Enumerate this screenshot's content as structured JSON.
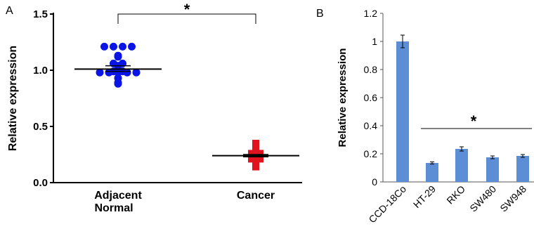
{
  "chart_data": [
    {
      "type": "scatter",
      "panel_label": "A",
      "ylabel": "Relative expression",
      "ylim": [
        0.0,
        1.5
      ],
      "yticks": [
        "0.0",
        "0.5",
        "1.0",
        "1.5"
      ],
      "categories": [
        {
          "lines": [
            "Adjacent",
            "Normal"
          ]
        },
        {
          "lines": [
            "Cancer"
          ]
        }
      ],
      "series": [
        {
          "color": "#0a14e6",
          "marker": "circle",
          "values": [
            1.21,
            1.21,
            1.21,
            1.21,
            1.13,
            1.12,
            1.06,
            1.06,
            1.04,
            0.99,
            0.98,
            0.98,
            0.98,
            0.98,
            0.98,
            0.99,
            0.93,
            0.89,
            0.88
          ],
          "mean": 1.01,
          "sem": [
            0.99,
            1.04
          ]
        },
        {
          "color": "#e0141e",
          "marker": "square",
          "values": [
            0.35,
            0.33,
            0.31,
            0.29,
            0.27,
            0.26,
            0.26,
            0.24,
            0.24,
            0.23,
            0.22,
            0.21,
            0.21,
            0.2,
            0.19,
            0.17,
            0.15,
            0.14
          ],
          "mean": 0.24,
          "sem": [
            0.23,
            0.25
          ]
        }
      ],
      "significance": {
        "label": "*",
        "from": 0,
        "to": 1
      }
    },
    {
      "type": "bar",
      "panel_label": "B",
      "ylabel": "Relative expression",
      "ylim": [
        0,
        1.2
      ],
      "yticks": [
        "0",
        "0.2",
        "0.4",
        "0.6",
        "0.8",
        "1",
        "1.2"
      ],
      "categories": [
        "CCD-18Co",
        "HT-29",
        "RKO",
        "SW480",
        "SW948"
      ],
      "values": [
        1.0,
        0.135,
        0.235,
        0.175,
        0.185
      ],
      "errors": [
        0.045,
        0.008,
        0.015,
        0.01,
        0.01
      ],
      "bar_color": "#5b8ed4",
      "significance": {
        "label": "*",
        "from": 1,
        "to": 4
      }
    }
  ]
}
